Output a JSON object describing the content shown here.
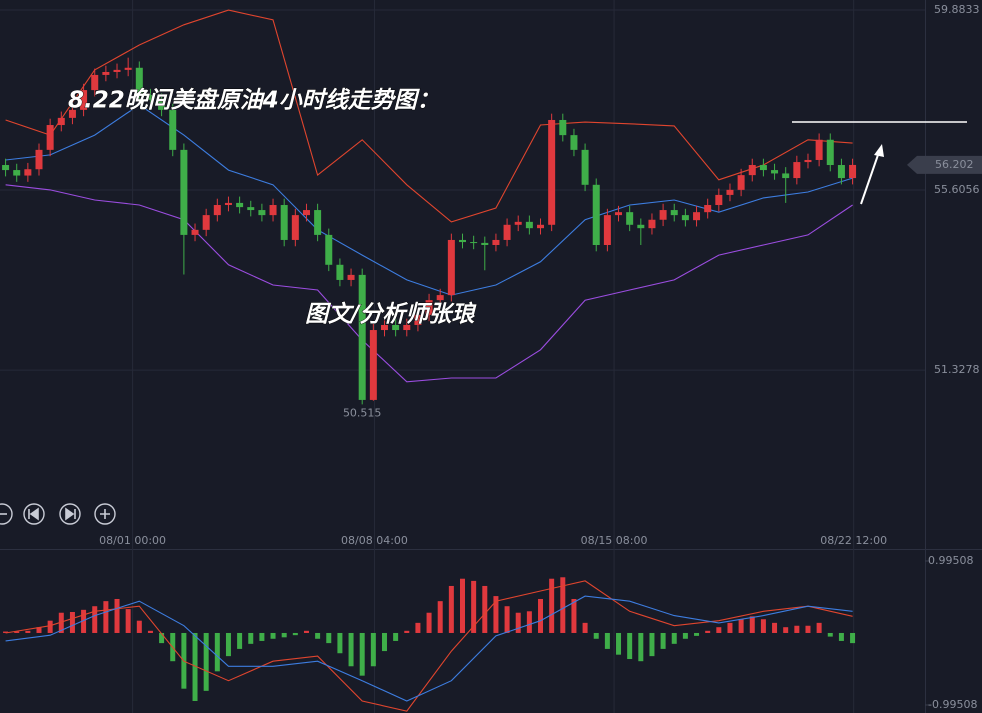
{
  "chart_data": [
    {
      "type": "candlestick",
      "annotations": [
        "8.22晚间美盘原油4小时线走势图：",
        "图文/分析师张琅"
      ],
      "xlim": [
        -0.5,
        82.5
      ],
      "xticks": [
        {
          "value": 11.4,
          "label": "08/01 00:00"
        },
        {
          "value": 33.1,
          "label": "08/08 04:00"
        },
        {
          "value": 54.6,
          "label": "08/15 08:00"
        },
        {
          "value": 76.1,
          "label": "08/22 12:00"
        }
      ],
      "ylim": [
        47.53,
        60.12
      ],
      "yticks": [
        59.8833,
        55.6056,
        51.3278
      ],
      "grid": true,
      "up_color": "#e0393e",
      "down_color": "#3fae49",
      "open": [
        56.2,
        56.08,
        55.95,
        56.1,
        56.56,
        57.15,
        57.32,
        57.51,
        57.98,
        58.34,
        58.41,
        58.46,
        58.51,
        57.86,
        57.75,
        57.51,
        56.56,
        54.54,
        54.66,
        55.01,
        55.25,
        55.3,
        55.2,
        55.13,
        55.01,
        55.25,
        54.42,
        55.01,
        55.13,
        54.54,
        53.83,
        53.47,
        53.59,
        50.62,
        52.28,
        52.4,
        52.28,
        52.4,
        52.64,
        52.99,
        53.11,
        54.42,
        54.37,
        54.35,
        54.3,
        54.42,
        54.78,
        54.85,
        54.7,
        54.78,
        57.27,
        56.91,
        56.56,
        55.73,
        54.3,
        55.01,
        55.08,
        54.78,
        54.7,
        54.9,
        55.13,
        55.01,
        54.89,
        55.08,
        55.25,
        55.49,
        55.61,
        55.96,
        56.2,
        56.08,
        56.0,
        55.89,
        56.27,
        56.32,
        56.8,
        56.2,
        55.89
      ],
      "high": [
        56.35,
        56.23,
        56.25,
        56.71,
        57.3,
        57.47,
        57.66,
        58.13,
        58.49,
        58.56,
        58.61,
        58.75,
        58.66,
        58.01,
        57.9,
        57.66,
        56.71,
        54.81,
        55.16,
        55.4,
        55.45,
        55.45,
        55.35,
        55.28,
        55.4,
        55.4,
        55.16,
        55.28,
        55.28,
        54.69,
        53.98,
        53.74,
        53.74,
        52.43,
        52.55,
        52.55,
        52.55,
        52.79,
        53.14,
        53.26,
        54.57,
        54.57,
        54.52,
        54.5,
        54.57,
        54.93,
        55.0,
        55.0,
        54.93,
        57.42,
        57.42,
        57.06,
        56.71,
        55.88,
        55.16,
        55.23,
        55.23,
        54.93,
        55.05,
        55.28,
        55.28,
        55.16,
        55.23,
        55.4,
        55.64,
        55.76,
        56.11,
        56.35,
        56.35,
        56.23,
        56.15,
        56.42,
        56.47,
        56.95,
        56.95,
        56.35,
        56.35
      ],
      "low": [
        55.93,
        55.8,
        55.8,
        55.95,
        56.41,
        57.0,
        57.17,
        57.36,
        57.83,
        58.19,
        58.26,
        58.31,
        57.71,
        57.6,
        57.36,
        56.41,
        53.6,
        54.39,
        54.51,
        54.86,
        55.1,
        55.05,
        54.98,
        54.86,
        54.86,
        54.27,
        54.27,
        54.86,
        54.39,
        53.68,
        53.32,
        53.32,
        50.515,
        50.6,
        52.13,
        52.13,
        52.13,
        52.25,
        52.49,
        52.84,
        52.96,
        54.22,
        54.2,
        53.7,
        54.15,
        54.27,
        54.63,
        54.55,
        54.55,
        54.63,
        56.76,
        56.41,
        55.58,
        54.15,
        54.15,
        54.86,
        54.63,
        54.3,
        54.55,
        54.75,
        54.86,
        54.74,
        54.74,
        54.93,
        55.1,
        55.34,
        55.46,
        55.81,
        55.93,
        55.85,
        55.3,
        55.74,
        56.12,
        56.17,
        56.05,
        55.74,
        55.74
      ],
      "close": [
        56.08,
        55.95,
        56.1,
        56.56,
        57.15,
        57.32,
        57.51,
        57.98,
        58.34,
        58.41,
        58.46,
        58.51,
        57.86,
        57.75,
        57.51,
        56.56,
        54.54,
        54.66,
        55.01,
        55.25,
        55.3,
        55.2,
        55.13,
        55.01,
        55.25,
        54.42,
        55.01,
        55.13,
        54.54,
        53.83,
        53.47,
        53.59,
        50.62,
        52.28,
        52.4,
        52.28,
        52.4,
        52.64,
        52.99,
        53.11,
        54.42,
        54.37,
        54.35,
        54.3,
        54.42,
        54.78,
        54.85,
        54.7,
        54.78,
        57.27,
        56.91,
        56.56,
        55.73,
        54.3,
        55.01,
        55.08,
        54.78,
        54.7,
        54.9,
        55.13,
        55.01,
        54.89,
        55.08,
        55.25,
        55.49,
        55.61,
        55.96,
        56.2,
        56.08,
        56.0,
        55.89,
        56.27,
        56.32,
        56.8,
        56.2,
        55.89,
        56.202
      ],
      "band_x": [
        0,
        4,
        8,
        12,
        16,
        20,
        24,
        28,
        32,
        36,
        40,
        44,
        48,
        52,
        56,
        60,
        64,
        68,
        72,
        76
      ],
      "bands": [
        {
          "color": "#e0452e",
          "values": [
            57.27,
            56.91,
            58.46,
            59.05,
            59.53,
            59.88,
            59.65,
            55.96,
            56.8,
            55.73,
            54.85,
            55.18,
            57.15,
            57.22,
            57.18,
            57.13,
            55.85,
            56.2,
            56.8,
            56.72
          ]
        },
        {
          "color": "#3d7de0",
          "values": [
            56.32,
            56.44,
            56.91,
            57.63,
            56.91,
            56.08,
            55.73,
            54.66,
            54.06,
            53.47,
            53.11,
            53.35,
            53.9,
            54.9,
            55.25,
            55.37,
            55.08,
            55.42,
            55.56,
            55.89
          ]
        },
        {
          "color": "#9b4de0",
          "values": [
            55.73,
            55.61,
            55.37,
            55.25,
            54.9,
            53.83,
            53.35,
            53.23,
            52.04,
            51.05,
            51.14,
            51.14,
            51.81,
            52.99,
            53.23,
            53.47,
            54.06,
            54.3,
            54.54,
            55.25
          ]
        }
      ]
    },
    {
      "type": "macd",
      "ylim": [
        -1.106,
        1.147
      ],
      "yticks": [
        0.99508,
        -0.99508
      ],
      "up_color": "#e0393e",
      "down_color": "#3fae49",
      "histogram": [
        0.02,
        0.02,
        0.03,
        0.08,
        0.17,
        0.28,
        0.29,
        0.32,
        0.37,
        0.44,
        0.47,
        0.33,
        0.17,
        0.03,
        -0.14,
        -0.39,
        -0.77,
        -0.94,
        -0.8,
        -0.53,
        -0.32,
        -0.22,
        -0.15,
        -0.11,
        -0.08,
        -0.06,
        -0.03,
        0.03,
        -0.08,
        -0.14,
        -0.28,
        -0.46,
        -0.59,
        -0.46,
        -0.25,
        -0.11,
        0.03,
        0.14,
        0.28,
        0.44,
        0.65,
        0.75,
        0.72,
        0.65,
        0.51,
        0.37,
        0.28,
        0.3,
        0.47,
        0.75,
        0.77,
        0.47,
        0.14,
        -0.08,
        -0.22,
        -0.3,
        -0.36,
        -0.39,
        -0.32,
        -0.22,
        -0.15,
        -0.08,
        -0.04,
        0.03,
        0.08,
        0.14,
        0.19,
        0.23,
        0.19,
        0.14,
        0.08,
        0.1,
        0.1,
        0.14,
        -0.05,
        -0.11,
        -0.14
      ],
      "line_x": [
        0,
        4,
        8,
        12,
        16,
        20,
        24,
        28,
        32,
        36,
        40,
        44,
        48,
        52,
        56,
        60,
        64,
        68,
        72,
        76
      ],
      "lines": [
        {
          "color": "#e0452e",
          "values": [
            0,
            0.1,
            0.3,
            0.37,
            -0.39,
            -0.66,
            -0.39,
            -0.32,
            -0.94,
            -1.08,
            -0.25,
            0.44,
            0.58,
            0.72,
            0.3,
            0.1,
            0.17,
            0.3,
            0.37,
            0.23
          ]
        },
        {
          "color": "#3d7de0",
          "values": [
            -0.11,
            -0.03,
            0.24,
            0.44,
            0.1,
            -0.46,
            -0.46,
            -0.39,
            -0.66,
            -0.94,
            -0.66,
            -0.04,
            0.17,
            0.51,
            0.44,
            0.24,
            0.14,
            0.24,
            0.37,
            0.3
          ]
        }
      ]
    }
  ]
}
